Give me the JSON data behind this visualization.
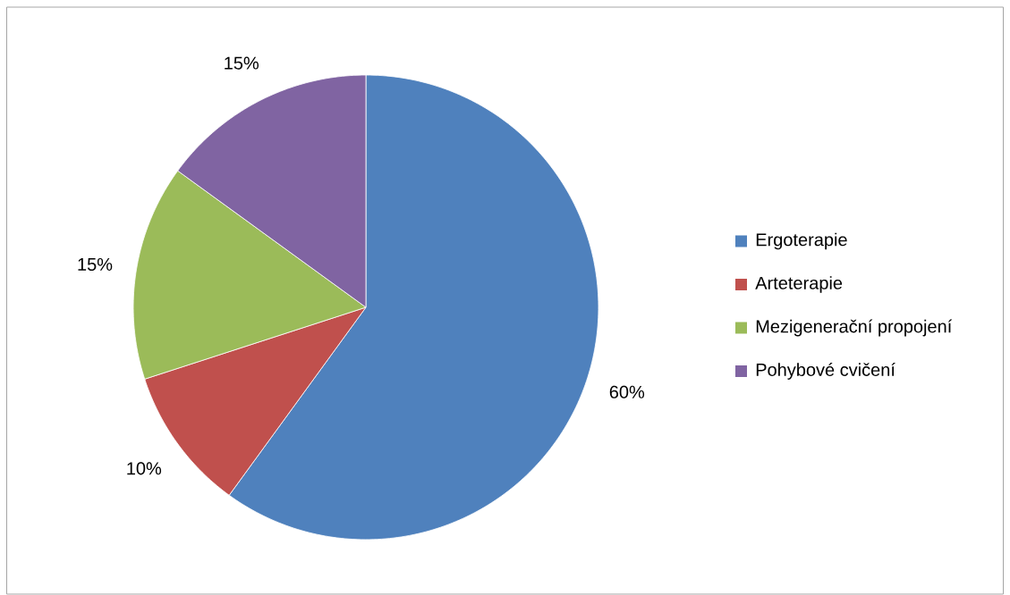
{
  "chart_data": {
    "type": "pie",
    "categories": [
      "Ergoterapie",
      "Arteterapie",
      "Mezigenerační propojení",
      "Pohybové cvičení"
    ],
    "values": [
      60,
      10,
      15,
      15
    ],
    "colors": [
      "#4f81bd",
      "#c0504d",
      "#9bbb59",
      "#8064a2"
    ],
    "value_labels": [
      "60%",
      "10%",
      "15%",
      "15%"
    ],
    "legend": "right"
  }
}
